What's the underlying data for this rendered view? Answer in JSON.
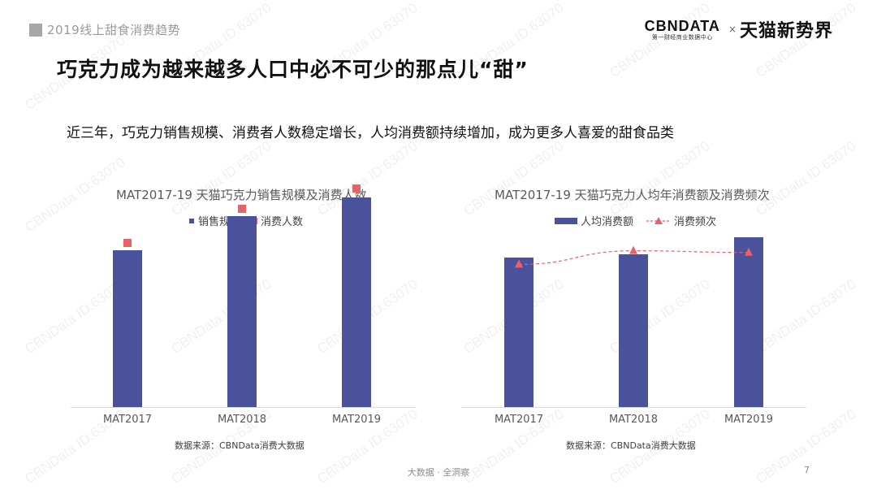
{
  "header": {
    "section_title": "2019线上甜食消费趋势"
  },
  "brand": {
    "cbn_logo": "CBNDATA",
    "cbn_sub": "第一财经商业数据中心",
    "times": "×",
    "tmall": "天猫新势界"
  },
  "slide": {
    "title": "巧克力成为越来越多人口中必不可少的那点儿“甜”",
    "subtitle": "近三年，巧克力销售规模、消费者人数稳定增长，人均消费额持续增加，成为更多人喜爱的甜食品类"
  },
  "watermark": "CBNData ID:63070",
  "colors": {
    "bar": "#4a529c",
    "marker": "#e8626a"
  },
  "chart_data": [
    {
      "type": "bar",
      "title": "MAT2017-19 天猫巧克力销售规模及消费人数",
      "categories": [
        "MAT2017",
        "MAT2018",
        "MAT2019"
      ],
      "series": [
        {
          "name": "销售规模",
          "type": "bar",
          "values": [
            0.69,
            0.84,
            0.92
          ]
        },
        {
          "name": "消费人数",
          "type": "marker-square",
          "values": [
            0.72,
            0.87,
            0.96
          ]
        }
      ],
      "ylim": [
        0,
        1
      ],
      "grid": false,
      "legend": "top",
      "source": "数据来源：CBNData消费大数据"
    },
    {
      "type": "bar",
      "title": "MAT2017-19 天猫巧克力人均年消费额及消费频次",
      "categories": [
        "MAT2017",
        "MAT2018",
        "MAT2019"
      ],
      "series": [
        {
          "name": "人均消费额",
          "type": "bar",
          "values": [
            0.88,
            0.9,
            1.0
          ]
        },
        {
          "name": "消费频次",
          "type": "line-triangle",
          "values": [
            0.84,
            0.92,
            0.91
          ]
        }
      ],
      "ylim": [
        0,
        1.1
      ],
      "grid": false,
      "legend": "top",
      "source": "数据来源：CBNData消费大数据"
    }
  ],
  "footer": {
    "text": "大数据 · 全洞察",
    "page": "7"
  }
}
